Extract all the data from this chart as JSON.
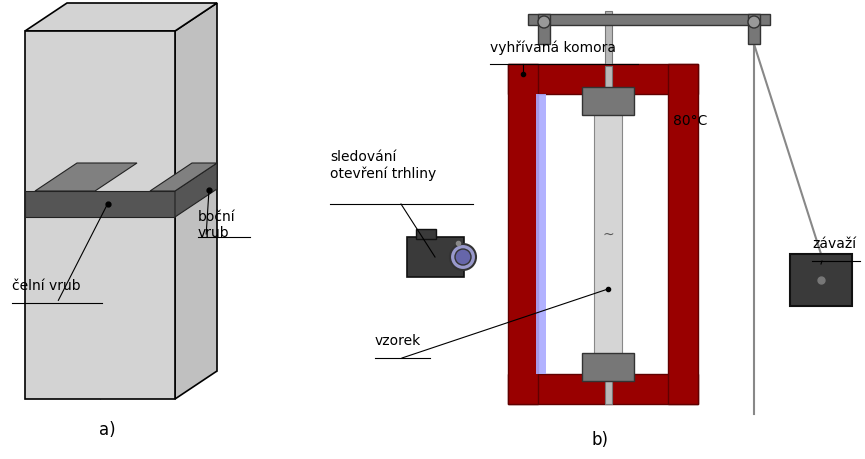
{
  "bg_color": "#ffffff",
  "box_face_color": "#d3d3d3",
  "box_face_right": "#c0c0c0",
  "box_edge_color": "#000000",
  "notch_color": "#555555",
  "notch_top_color": "#888888",
  "dark_red": "#990000",
  "gray_clamp": "#777777",
  "light_gray_sample": "#d0d0d0",
  "blue_light": "#aaaaff",
  "dark_gray": "#3a3a3a",
  "rod_color": "#aaaaaa",
  "label_a": "a)",
  "label_b": "b)",
  "label_celni": "čelní vrub",
  "label_bocni": "boční\nvrub",
  "label_vyhrivana": "vyhřívaná komora",
  "label_sledovani": "sledování\notevření trhliny",
  "label_vzorek": "vzorek",
  "label_zavazi": "závaží",
  "label_temp": "80°C"
}
